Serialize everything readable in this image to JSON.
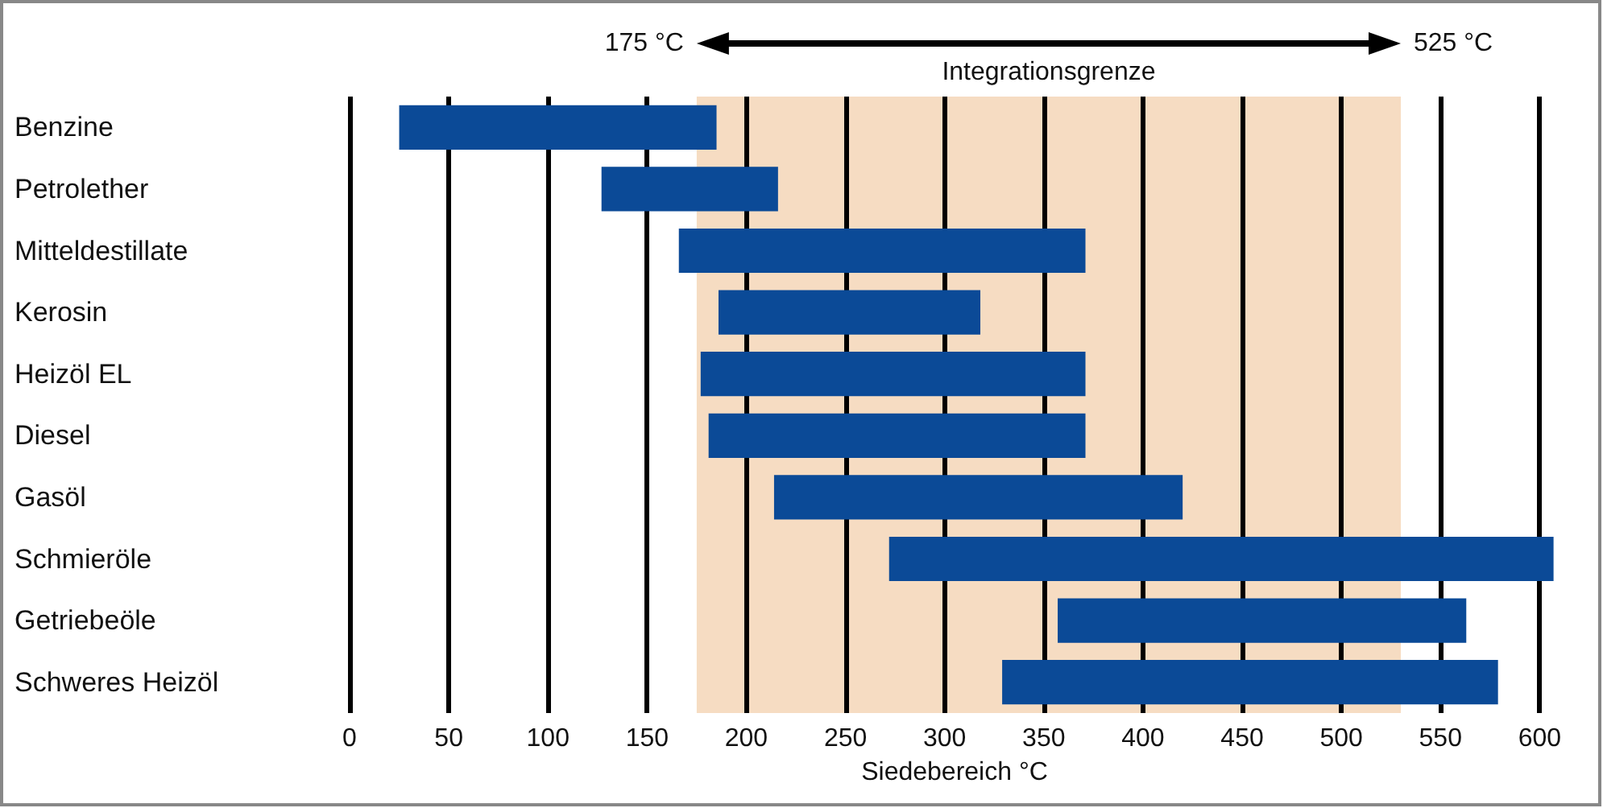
{
  "chart_data": {
    "type": "bar",
    "orientation": "horizontal",
    "xlabel": "Siedebereich °C",
    "categories": [
      "Benzine",
      "Petrolether",
      "Mitteldestillate",
      "Kerosin",
      "Heizöl EL",
      "Diesel",
      "Gasöl",
      "Schmieröle",
      "Getriebeöle",
      "Schweres Heizöl"
    ],
    "base": [
      25,
      127,
      166,
      186,
      177,
      181,
      214,
      272,
      357,
      329
    ],
    "values": [
      160,
      89,
      205,
      132,
      194,
      190,
      206,
      335,
      206,
      250
    ],
    "color": "#0b4a97",
    "xlim": [
      0,
      610
    ],
    "xticks": [
      0,
      50,
      100,
      150,
      200,
      250,
      300,
      350,
      400,
      450,
      500,
      550,
      600
    ],
    "grid": "x",
    "bands": [
      {
        "axis": "x",
        "from": 175,
        "to": 530,
        "label": "Integrationsgrenze",
        "color": "#f6dcc2"
      }
    ],
    "annotations": [
      "175 °C",
      "525 °C"
    ]
  }
}
